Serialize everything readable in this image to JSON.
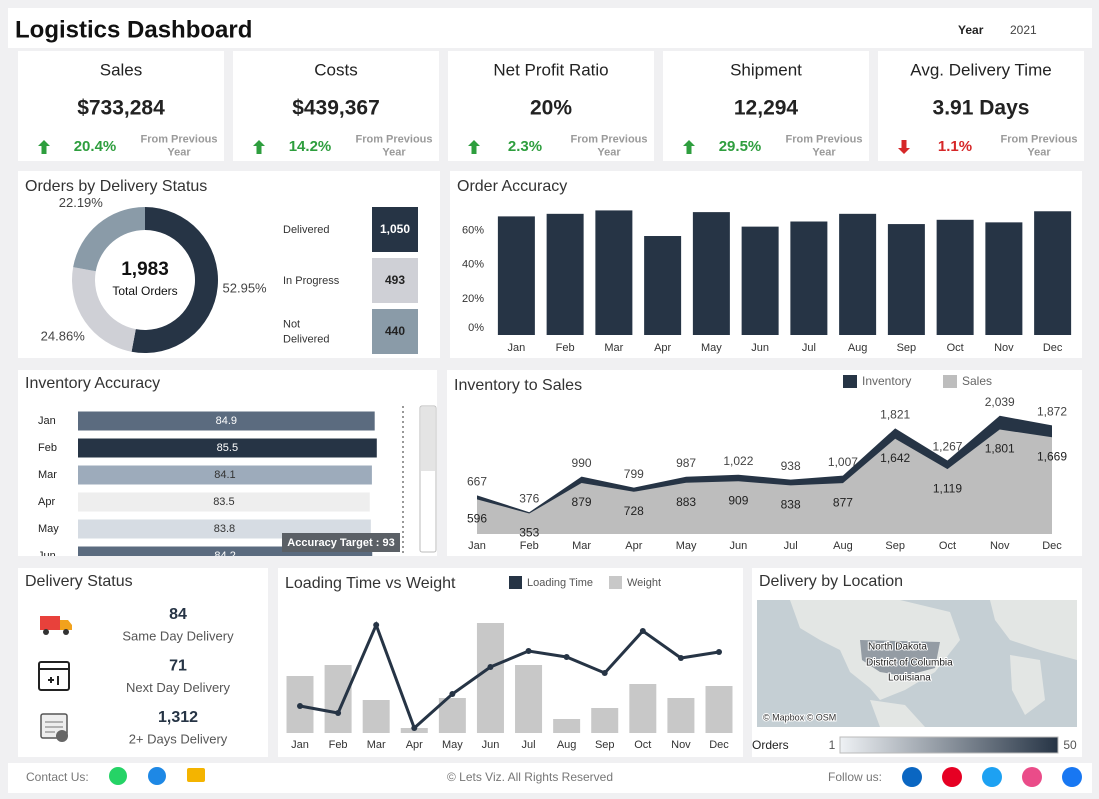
{
  "header": {
    "title": "Logistics Dashboard",
    "year_label": "Year",
    "year": "2021"
  },
  "kpis": [
    {
      "title": "Sales",
      "value": "$733,284",
      "change": "20.4%",
      "direction": "up",
      "note": "From Previous Year"
    },
    {
      "title": "Costs",
      "value": "$439,367",
      "change": "14.2%",
      "direction": "up",
      "note": "From Previous Year"
    },
    {
      "title": "Net Profit Ratio",
      "value": "20%",
      "change": "2.3%",
      "direction": "up",
      "note": "From Previous Year"
    },
    {
      "title": "Shipment",
      "value": "12,294",
      "change": "29.5%",
      "direction": "up",
      "note": "From Previous Year"
    },
    {
      "title": "Avg. Delivery Time",
      "value": "3.91 Days",
      "change": "1.1%",
      "direction": "down",
      "note": "From Previous Year"
    }
  ],
  "chart_data": [
    {
      "type": "donut",
      "title": "Orders by Delivery Status",
      "center_value": "1,983",
      "center_label": "Total Orders",
      "categories": [
        "Delivered",
        "In Progress",
        "Not Delivered"
      ],
      "values": [
        52.95,
        24.86,
        22.19
      ],
      "value_labels": [
        "52.95%",
        "24.86%",
        "22.19%"
      ],
      "counts": [
        1050,
        493,
        440
      ],
      "count_labels": [
        "1,050",
        "493",
        "440"
      ],
      "colors": [
        "#263445",
        "#cfd0d6",
        "#8a9ba8"
      ]
    },
    {
      "type": "bar",
      "title": "Order Accuracy",
      "categories": [
        "Jan",
        "Feb",
        "Mar",
        "Apr",
        "May",
        "Jun",
        "Jul",
        "Aug",
        "Sep",
        "Oct",
        "Nov",
        "Dec"
      ],
      "values": [
        69.5,
        71,
        73,
        58,
        72,
        63.5,
        66.5,
        71,
        65,
        67.5,
        66,
        72.5
      ],
      "color": "#263445",
      "ylim": [
        0,
        75
      ],
      "yticks": [
        {
          "value": 0,
          "label": "0%"
        },
        {
          "value": 20,
          "label": "20%"
        },
        {
          "value": 40,
          "label": "40%"
        },
        {
          "value": 60,
          "label": "60%"
        }
      ]
    },
    {
      "type": "hbar",
      "title": "Inventory Accuracy",
      "categories": [
        "Jan",
        "Feb",
        "Mar",
        "Apr",
        "May",
        "Jun"
      ],
      "values": [
        84.9,
        85.5,
        84.1,
        83.5,
        83.8,
        84.2
      ],
      "colors": [
        "#5b6b7f",
        "#263445",
        "#9dabbb",
        "#eeeeee",
        "#d6dce3",
        "#5b6b7f"
      ],
      "xlim": [
        0,
        93
      ],
      "target": 93,
      "target_label": "Accuracy Target : 93"
    },
    {
      "type": "area",
      "title": "Inventory to Sales",
      "categories": [
        "Jan",
        "Feb",
        "Mar",
        "Apr",
        "May",
        "Jun",
        "Jul",
        "Aug",
        "Sep",
        "Oct",
        "Nov",
        "Dec"
      ],
      "ylim": [
        0,
        2300
      ],
      "legend": "top-right",
      "series": [
        {
          "name": "Inventory",
          "color": "#263445",
          "values": [
            667,
            376,
            990,
            799,
            987,
            1022,
            938,
            1007,
            1821,
            1267,
            2039,
            1872
          ],
          "value_labels": [
            "667",
            "376",
            "990",
            "799",
            "987",
            "1,022",
            "938",
            "1,007",
            "1,821",
            "1,267",
            "2,039",
            "1,872"
          ]
        },
        {
          "name": "Sales",
          "color": "#bdbdbd",
          "values": [
            596,
            353,
            879,
            728,
            883,
            909,
            838,
            877,
            1642,
            1119,
            1801,
            1669
          ],
          "value_labels": [
            "596",
            "353",
            "879",
            "728",
            "883",
            "909",
            "838",
            "877",
            "1,642",
            "1,119",
            "1,801",
            "1,669"
          ]
        }
      ]
    },
    {
      "type": "combo",
      "title": "Loading Time vs Weight",
      "categories": [
        "Jan",
        "Feb",
        "Mar",
        "Apr",
        "May",
        "Jun",
        "Jul",
        "Aug",
        "Sep",
        "Oct",
        "Nov",
        "Dec"
      ],
      "ylim": [
        0,
        120
      ],
      "legend": "top",
      "series": [
        {
          "name": "Loading Time",
          "type": "line",
          "color": "#263445",
          "values": [
            27,
            20,
            108,
            5,
            39,
            66,
            82,
            76,
            60,
            102,
            75,
            81
          ]
        },
        {
          "name": "Weight",
          "type": "bar",
          "color": "#c8c8c8",
          "values": [
            57,
            68,
            33,
            5,
            35,
            110,
            68,
            14,
            25,
            49,
            35,
            47
          ]
        }
      ]
    }
  ],
  "delivery_status": {
    "title": "Delivery Status",
    "items": [
      {
        "value": "84",
        "label": "Same Day Delivery"
      },
      {
        "value": "71",
        "label": "Next Day Delivery"
      },
      {
        "value": "1,312",
        "label": "2+ Days Delivery"
      }
    ]
  },
  "map": {
    "title": "Delivery by Location",
    "places": [
      "North Dakota",
      "District of Columbia",
      "Louisiana"
    ],
    "attribution": "© Mapbox © OSM",
    "legend_title": "Orders",
    "color_range": [
      1,
      50
    ]
  },
  "footer": {
    "contact": "Contact Us:",
    "copyright": "© Lets Viz. All Rights Reserved",
    "follow": "Follow us:"
  }
}
